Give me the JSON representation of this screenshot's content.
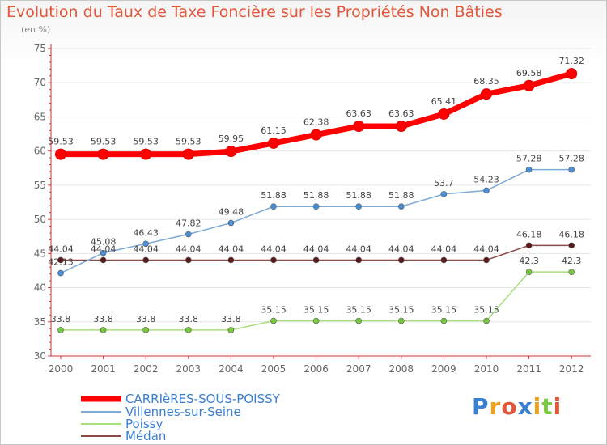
{
  "chart_data": {
    "type": "line",
    "title": "Evolution du Taux de Taxe Foncière sur les Propriétés Non Bâties",
    "unit_label": "(en %)",
    "xlabel": "",
    "ylabel": "",
    "ylim": [
      30,
      75
    ],
    "yticks": [
      30,
      35,
      40,
      45,
      50,
      55,
      60,
      65,
      70,
      75
    ],
    "categories": [
      "2000",
      "2001",
      "2002",
      "2003",
      "2004",
      "2005",
      "2006",
      "2007",
      "2008",
      "2009",
      "2010",
      "2011",
      "2012"
    ],
    "series": [
      {
        "name": "CARRIèRES-SOUS-POISSY",
        "color": "#ff0000",
        "marker": "#ff0000",
        "values": [
          59.53,
          59.53,
          59.53,
          59.53,
          59.95,
          61.15,
          62.38,
          63.63,
          63.63,
          65.41,
          68.35,
          69.58,
          71.32
        ],
        "labels": [
          "59.53",
          "59.53",
          "59.53",
          "59.53",
          "59.95",
          "61.15",
          "62.38",
          "63.63",
          "63.63",
          "65.41",
          "68.35",
          "69.58",
          "71.32"
        ]
      },
      {
        "name": "Villennes-sur-Seine",
        "color": "#7eaad6",
        "marker": "#4a90d9",
        "values": [
          42.13,
          45.08,
          46.43,
          47.82,
          49.48,
          51.88,
          51.88,
          51.88,
          51.88,
          53.7,
          54.23,
          57.28,
          57.28
        ],
        "labels": [
          "42.13",
          "45.08",
          "46.43",
          "47.82",
          "49.48",
          "51.88",
          "51.88",
          "51.88",
          "51.88",
          "53.7",
          "54.23",
          "57.28",
          "57.28"
        ]
      },
      {
        "name": "Poissy",
        "color": "#a9e07a",
        "marker": "#7ac943",
        "values": [
          33.8,
          33.8,
          33.8,
          33.8,
          33.8,
          35.15,
          35.15,
          35.15,
          35.15,
          35.15,
          35.15,
          42.3,
          42.3
        ],
        "labels": [
          "33.8",
          "33.8",
          "33.8",
          "33.8",
          "33.8",
          "35.15",
          "35.15",
          "35.15",
          "35.15",
          "35.15",
          "35.15",
          "42.3",
          "42.3"
        ]
      },
      {
        "name": "Médan",
        "color": "#8b4a4a",
        "marker": "#5a1a1a",
        "values": [
          44.04,
          44.04,
          44.04,
          44.04,
          44.04,
          44.04,
          44.04,
          44.04,
          44.04,
          44.04,
          44.04,
          46.18,
          46.18
        ],
        "labels": [
          "44.04",
          "44.04",
          "44.04",
          "44.04",
          "44.04",
          "44.04",
          "44.04",
          "44.04",
          "44.04",
          "44.04",
          "44.04",
          "46.18",
          "46.18"
        ]
      }
    ]
  },
  "logo": {
    "letters": [
      "P",
      "r",
      "o",
      "x",
      "i",
      "t",
      "i"
    ],
    "colors": [
      "#3a7fd0",
      "#f0a020",
      "#e0573a",
      "#3a7fd0",
      "#f0a020",
      "#7ac943",
      "#e0573a"
    ]
  }
}
